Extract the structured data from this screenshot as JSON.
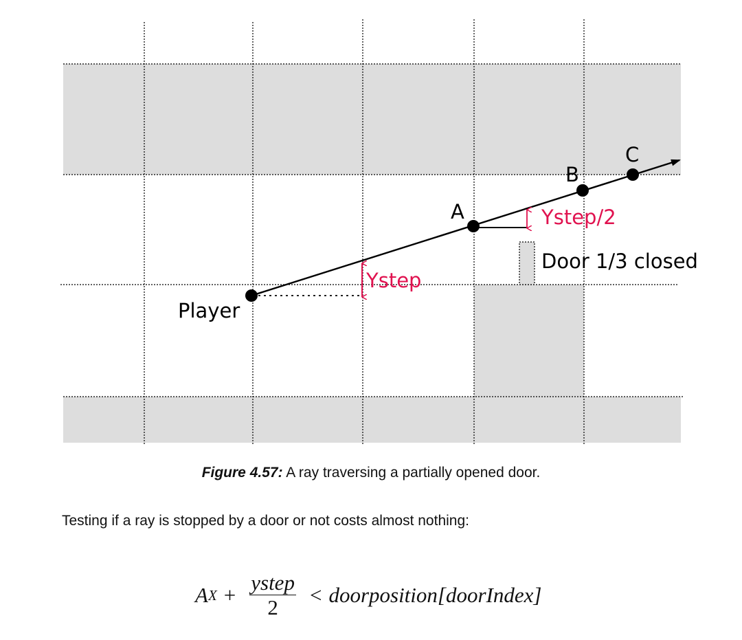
{
  "labels": {
    "player": "Player",
    "point_a": "A",
    "point_b": "B",
    "point_c": "C",
    "ystep": "Ystep",
    "ystep_half": "Ystep/2",
    "door": "Door 1/3 closed"
  },
  "colors": {
    "wall_fill": "#dddddd",
    "accent_red": "#e0124f",
    "line": "#000000"
  },
  "caption": {
    "figure_label": "Figure 4.57:",
    "text": "A ray traversing a partially opened door."
  },
  "body": {
    "text": "Testing if a ray is stopped by a door or not costs almost nothing:"
  },
  "formula": {
    "a": "A",
    "a_sub": "X",
    "plus": "+",
    "numerator": "ystep",
    "denominator": "2",
    "lt": "<",
    "rhs": "doorposition[doorIndex]"
  }
}
